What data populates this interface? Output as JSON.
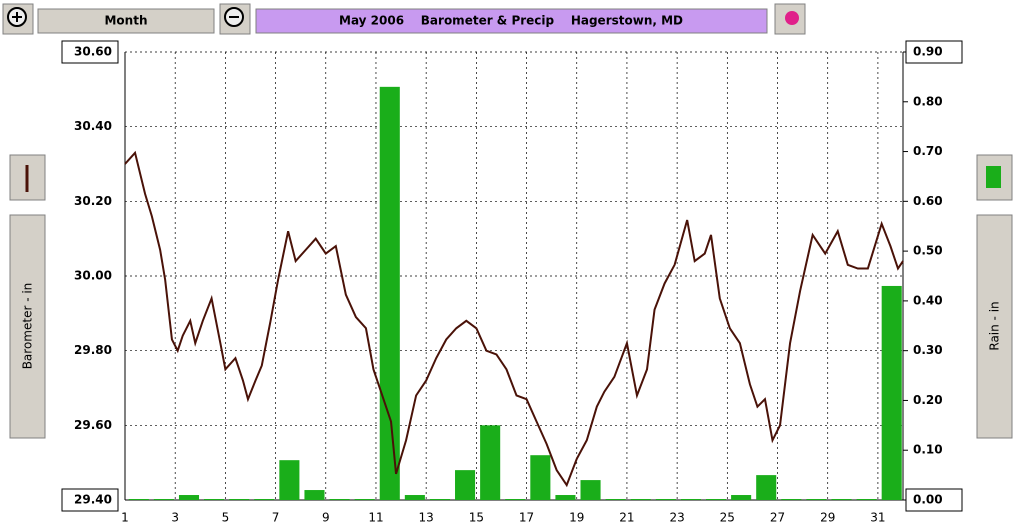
{
  "toolbar": {
    "period": "Month"
  },
  "chart_data": {
    "type": "line-bar",
    "title": "May 2006    Barometer & Precip    Hagerstown, MD",
    "ylabel": "Barometer - in",
    "y2label": "Rain - in",
    "xlim": [
      1,
      32
    ],
    "xticks": [
      1,
      3,
      5,
      7,
      9,
      11,
      13,
      15,
      17,
      19,
      21,
      23,
      25,
      27,
      29,
      31
    ],
    "ylim": [
      29.4,
      30.6
    ],
    "yticks": [
      {
        "value": 29.4,
        "label": "29.40"
      },
      {
        "value": 29.6,
        "label": "29.60"
      },
      {
        "value": 29.8,
        "label": "29.80"
      },
      {
        "value": 30.0,
        "label": "30.00"
      },
      {
        "value": 30.2,
        "label": "30.20"
      },
      {
        "value": 30.4,
        "label": "30.40"
      },
      {
        "value": 30.6,
        "label": "30.60"
      }
    ],
    "y2lim": [
      0,
      0.9
    ],
    "y2ticks": [
      {
        "value": 0,
        "label": "0.00"
      },
      {
        "value": 0.1,
        "label": "0.10"
      },
      {
        "value": 0.2,
        "label": "0.20"
      },
      {
        "value": 0.3,
        "label": "0.30"
      },
      {
        "value": 0.4,
        "label": "0.40"
      },
      {
        "value": 0.5,
        "label": "0.50"
      },
      {
        "value": 0.6,
        "label": "0.60"
      },
      {
        "value": 0.7,
        "label": "0.70"
      },
      {
        "value": 0.8,
        "label": "0.80"
      },
      {
        "value": 0.9,
        "label": "0.90"
      }
    ],
    "grid": true,
    "series": [
      {
        "name": "Barometer",
        "kind": "line",
        "color": "#4a1208",
        "x": [
          1.0,
          1.4,
          1.8,
          2.07,
          2.4,
          2.6,
          2.87,
          3.1,
          3.3,
          3.6,
          3.8,
          4.1,
          4.45,
          4.8,
          5.0,
          5.4,
          5.7,
          5.9,
          6.2,
          6.45,
          6.8,
          7.1,
          7.5,
          7.8,
          8.2,
          8.6,
          9.0,
          9.4,
          9.8,
          10.2,
          10.6,
          10.9,
          11.2,
          11.6,
          11.8,
          12.2,
          12.6,
          13.0,
          13.4,
          13.8,
          14.2,
          14.6,
          15.0,
          15.4,
          15.8,
          16.2,
          16.6,
          17.0,
          17.4,
          17.8,
          18.2,
          18.6,
          19.0,
          19.4,
          19.8,
          20.1,
          20.5,
          21.0,
          21.4,
          21.8,
          22.1,
          22.5,
          22.9,
          23.4,
          23.7,
          24.1,
          24.35,
          24.7,
          25.1,
          25.5,
          25.9,
          26.2,
          26.5,
          26.8,
          27.1,
          27.5,
          27.9,
          28.4,
          28.9,
          29.4,
          29.8,
          30.2,
          30.6,
          31.15,
          31.5,
          31.8,
          32.0
        ],
        "values": [
          30.3,
          30.33,
          30.22,
          30.16,
          30.07,
          29.99,
          29.83,
          29.8,
          29.84,
          29.88,
          29.82,
          29.88,
          29.94,
          29.82,
          29.75,
          29.78,
          29.72,
          29.67,
          29.72,
          29.76,
          29.88,
          29.99,
          30.12,
          30.04,
          30.07,
          30.1,
          30.06,
          30.08,
          29.95,
          29.89,
          29.86,
          29.75,
          29.69,
          29.61,
          29.47,
          29.56,
          29.68,
          29.72,
          29.78,
          29.83,
          29.86,
          29.88,
          29.86,
          29.8,
          29.79,
          29.75,
          29.68,
          29.67,
          29.61,
          29.55,
          29.48,
          29.44,
          29.51,
          29.56,
          29.65,
          29.69,
          29.73,
          29.82,
          29.68,
          29.75,
          29.91,
          29.98,
          30.03,
          30.15,
          30.04,
          30.06,
          30.11,
          29.94,
          29.86,
          29.82,
          29.71,
          29.65,
          29.67,
          29.56,
          29.6,
          29.82,
          29.96,
          30.11,
          30.06,
          30.12,
          30.03,
          30.02,
          30.02,
          30.14,
          30.08,
          30.02,
          30.04
        ]
      },
      {
        "name": "Rain",
        "kind": "bar",
        "axis": "y2",
        "color": "#1aae1a",
        "x": [
          1,
          2,
          3,
          4,
          5,
          6,
          7,
          8,
          9,
          10,
          11,
          12,
          13,
          14,
          15,
          16,
          17,
          18,
          19,
          20,
          21,
          22,
          23,
          24,
          25,
          26,
          27,
          28,
          29,
          30,
          31
        ],
        "values": [
          0,
          0,
          0.01,
          0,
          0,
          0,
          0.08,
          0.02,
          0,
          0,
          0.83,
          0.01,
          0,
          0.06,
          0.15,
          0,
          0.09,
          0.01,
          0.04,
          0,
          0,
          0,
          0,
          0,
          0.01,
          0.05,
          0,
          0,
          0,
          0,
          0.43
        ]
      }
    ]
  }
}
